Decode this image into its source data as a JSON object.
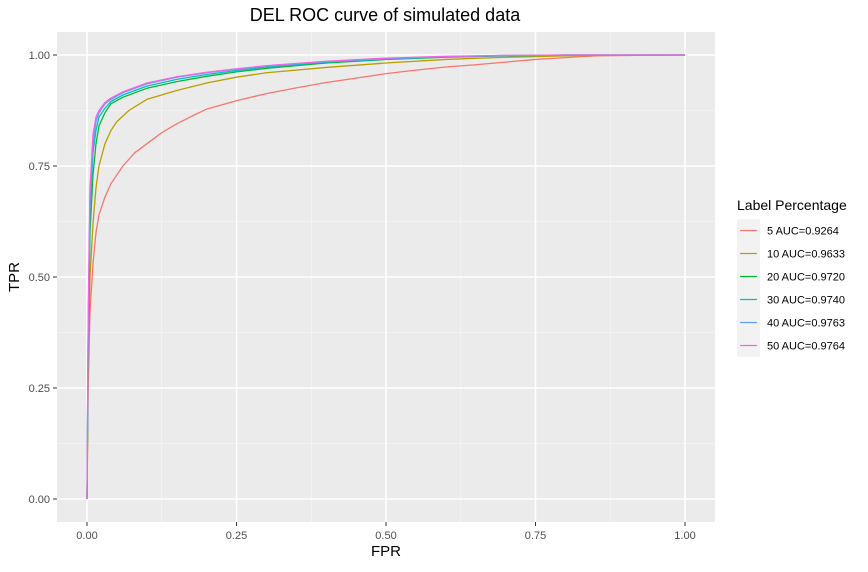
{
  "chart_data": {
    "type": "line",
    "title": "DEL ROC curve of simulated data",
    "xlabel": "FPR",
    "ylabel": "TPR",
    "xlim": [
      0,
      1
    ],
    "ylim": [
      0,
      1
    ],
    "x_ticks": [
      "0.00",
      "0.25",
      "0.50",
      "0.75",
      "1.00"
    ],
    "y_ticks": [
      "0.00",
      "0.25",
      "0.50",
      "0.75",
      "1.00"
    ],
    "grid": true,
    "legend": {
      "title": "Label Percentage",
      "position": "right"
    },
    "series": [
      {
        "name": "5 AUC=0.9264",
        "color": "#F8766D",
        "points": [
          [
            0,
            0
          ],
          [
            0.002,
            0.25
          ],
          [
            0.005,
            0.42
          ],
          [
            0.01,
            0.53
          ],
          [
            0.015,
            0.6
          ],
          [
            0.02,
            0.64
          ],
          [
            0.03,
            0.68
          ],
          [
            0.04,
            0.71
          ],
          [
            0.06,
            0.75
          ],
          [
            0.08,
            0.78
          ],
          [
            0.1,
            0.8
          ],
          [
            0.125,
            0.825
          ],
          [
            0.15,
            0.845
          ],
          [
            0.175,
            0.862
          ],
          [
            0.2,
            0.878
          ],
          [
            0.25,
            0.897
          ],
          [
            0.3,
            0.913
          ],
          [
            0.35,
            0.926
          ],
          [
            0.4,
            0.938
          ],
          [
            0.45,
            0.948
          ],
          [
            0.5,
            0.958
          ],
          [
            0.55,
            0.966
          ],
          [
            0.6,
            0.973
          ],
          [
            0.65,
            0.978
          ],
          [
            0.7,
            0.984
          ],
          [
            0.75,
            0.99
          ],
          [
            0.8,
            0.994
          ],
          [
            0.85,
            0.998
          ],
          [
            0.9,
            0.999
          ],
          [
            1,
            1
          ]
        ]
      },
      {
        "name": "10 AUC=0.9633",
        "color": "#B79F00",
        "points": [
          [
            0,
            0
          ],
          [
            0.002,
            0.3
          ],
          [
            0.005,
            0.5
          ],
          [
            0.01,
            0.62
          ],
          [
            0.015,
            0.7
          ],
          [
            0.02,
            0.75
          ],
          [
            0.03,
            0.8
          ],
          [
            0.04,
            0.83
          ],
          [
            0.05,
            0.85
          ],
          [
            0.07,
            0.875
          ],
          [
            0.1,
            0.9
          ],
          [
            0.15,
            0.92
          ],
          [
            0.2,
            0.937
          ],
          [
            0.25,
            0.95
          ],
          [
            0.3,
            0.96
          ],
          [
            0.4,
            0.972
          ],
          [
            0.5,
            0.982
          ],
          [
            0.6,
            0.99
          ],
          [
            0.7,
            0.995
          ],
          [
            0.8,
            0.998
          ],
          [
            0.9,
            1
          ],
          [
            1,
            1
          ]
        ]
      },
      {
        "name": "20 AUC=0.9720",
        "color": "#00BA38",
        "points": [
          [
            0,
            0
          ],
          [
            0.002,
            0.35
          ],
          [
            0.005,
            0.6
          ],
          [
            0.01,
            0.73
          ],
          [
            0.015,
            0.8
          ],
          [
            0.02,
            0.84
          ],
          [
            0.03,
            0.87
          ],
          [
            0.04,
            0.89
          ],
          [
            0.06,
            0.905
          ],
          [
            0.1,
            0.925
          ],
          [
            0.15,
            0.94
          ],
          [
            0.2,
            0.952
          ],
          [
            0.25,
            0.962
          ],
          [
            0.3,
            0.97
          ],
          [
            0.4,
            0.982
          ],
          [
            0.5,
            0.99
          ],
          [
            0.6,
            0.995
          ],
          [
            0.7,
            0.998
          ],
          [
            0.8,
            1
          ],
          [
            1,
            1
          ]
        ]
      },
      {
        "name": "30 AUC=0.9740",
        "color": "#00BFC4",
        "points": [
          [
            0,
            0
          ],
          [
            0.002,
            0.38
          ],
          [
            0.005,
            0.65
          ],
          [
            0.01,
            0.78
          ],
          [
            0.015,
            0.83
          ],
          [
            0.02,
            0.86
          ],
          [
            0.03,
            0.88
          ],
          [
            0.04,
            0.895
          ],
          [
            0.06,
            0.91
          ],
          [
            0.1,
            0.93
          ],
          [
            0.15,
            0.945
          ],
          [
            0.2,
            0.956
          ],
          [
            0.25,
            0.965
          ],
          [
            0.3,
            0.973
          ],
          [
            0.4,
            0.984
          ],
          [
            0.5,
            0.991
          ],
          [
            0.6,
            0.996
          ],
          [
            0.7,
            0.998
          ],
          [
            0.8,
            1
          ],
          [
            1,
            1
          ]
        ]
      },
      {
        "name": "40 AUC=0.9763",
        "color": "#619CFF",
        "points": [
          [
            0,
            0
          ],
          [
            0.002,
            0.4
          ],
          [
            0.005,
            0.68
          ],
          [
            0.01,
            0.8
          ],
          [
            0.015,
            0.85
          ],
          [
            0.02,
            0.87
          ],
          [
            0.03,
            0.89
          ],
          [
            0.04,
            0.9
          ],
          [
            0.06,
            0.915
          ],
          [
            0.1,
            0.935
          ],
          [
            0.15,
            0.95
          ],
          [
            0.2,
            0.96
          ],
          [
            0.25,
            0.968
          ],
          [
            0.3,
            0.975
          ],
          [
            0.4,
            0.985
          ],
          [
            0.5,
            0.992
          ],
          [
            0.6,
            0.996
          ],
          [
            0.7,
            0.999
          ],
          [
            0.8,
            1
          ],
          [
            1,
            1
          ]
        ]
      },
      {
        "name": "50 AUC=0.9764",
        "color": "#F564E3",
        "points": [
          [
            0,
            0
          ],
          [
            0.002,
            0.42
          ],
          [
            0.005,
            0.7
          ],
          [
            0.01,
            0.82
          ],
          [
            0.015,
            0.86
          ],
          [
            0.02,
            0.875
          ],
          [
            0.03,
            0.893
          ],
          [
            0.04,
            0.903
          ],
          [
            0.06,
            0.917
          ],
          [
            0.1,
            0.937
          ],
          [
            0.15,
            0.951
          ],
          [
            0.2,
            0.961
          ],
          [
            0.25,
            0.969
          ],
          [
            0.3,
            0.976
          ],
          [
            0.4,
            0.986
          ],
          [
            0.5,
            0.993
          ],
          [
            0.6,
            0.997
          ],
          [
            0.7,
            0.999
          ],
          [
            0.8,
            1
          ],
          [
            1,
            1
          ]
        ]
      }
    ]
  }
}
